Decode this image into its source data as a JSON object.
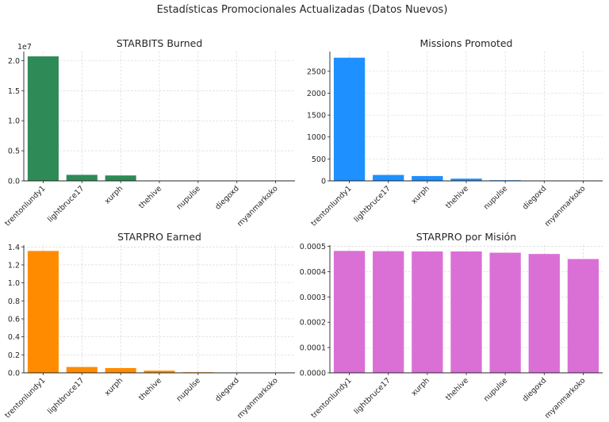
{
  "figure_title": "Estadísticas Promocionales Actualizadas (Datos Nuevos)",
  "chart_data": [
    {
      "type": "bar",
      "title": "STARBITS Burned",
      "categories": [
        "trentonlundy1",
        "lightbruce17",
        "xurph",
        "thehive",
        "nupulse",
        "diegoxd",
        "myanmarkoko"
      ],
      "values": [
        20700000,
        1000000,
        900000,
        60000,
        35000,
        8000,
        3000
      ],
      "ylim": [
        0,
        21500000
      ],
      "yticks": [
        0,
        5000000,
        10000000,
        15000000,
        20000000
      ],
      "ytick_labels": [
        "0.0",
        "0.5",
        "1.0",
        "1.5",
        "2.0"
      ],
      "offset_label": "1e7",
      "color": "#2e8b57",
      "grid": true,
      "xlabel": "",
      "ylabel": ""
    },
    {
      "type": "bar",
      "title": "Missions Promoted",
      "categories": [
        "trentonlundy1",
        "lightbruce17",
        "xurph",
        "thehive",
        "nupulse",
        "diegoxd",
        "myanmarkoko"
      ],
      "values": [
        2810,
        135,
        110,
        50,
        15,
        5,
        2
      ],
      "ylim": [
        0,
        2950
      ],
      "yticks": [
        0,
        500,
        1000,
        1500,
        2000,
        2500
      ],
      "ytick_labels": [
        "0",
        "500",
        "1000",
        "1500",
        "2000",
        "2500"
      ],
      "color": "#1e90ff",
      "grid": true,
      "xlabel": "",
      "ylabel": ""
    },
    {
      "type": "bar",
      "title": "STARPRO Earned",
      "categories": [
        "trentonlundy1",
        "lightbruce17",
        "xurph",
        "thehive",
        "nupulse",
        "diegoxd",
        "myanmarkoko"
      ],
      "values": [
        1.355,
        0.065,
        0.053,
        0.024,
        0.007,
        0.002,
        0.001
      ],
      "ylim": [
        0,
        1.42
      ],
      "yticks": [
        0,
        0.2,
        0.4,
        0.6,
        0.8,
        1.0,
        1.2,
        1.4
      ],
      "ytick_labels": [
        "0.0",
        "0.2",
        "0.4",
        "0.6",
        "0.8",
        "1.0",
        "1.2",
        "1.4"
      ],
      "color": "#ff8c00",
      "grid": true,
      "xlabel": "",
      "ylabel": ""
    },
    {
      "type": "bar",
      "title": "STARPRO por Misión",
      "categories": [
        "trentonlundy1",
        "lightbruce17",
        "xurph",
        "thehive",
        "nupulse",
        "diegoxd",
        "myanmarkoko"
      ],
      "values": [
        0.000482,
        0.000481,
        0.00048,
        0.00048,
        0.000475,
        0.00047,
        0.00045
      ],
      "ylim": [
        0,
        0.000505
      ],
      "yticks": [
        0,
        0.0001,
        0.0002,
        0.0003,
        0.0004,
        0.0005
      ],
      "ytick_labels": [
        "0.0000",
        "0.0001",
        "0.0002",
        "0.0003",
        "0.0004",
        "0.0005"
      ],
      "color": "#da70d6",
      "grid": true,
      "xlabel": "",
      "ylabel": ""
    }
  ]
}
